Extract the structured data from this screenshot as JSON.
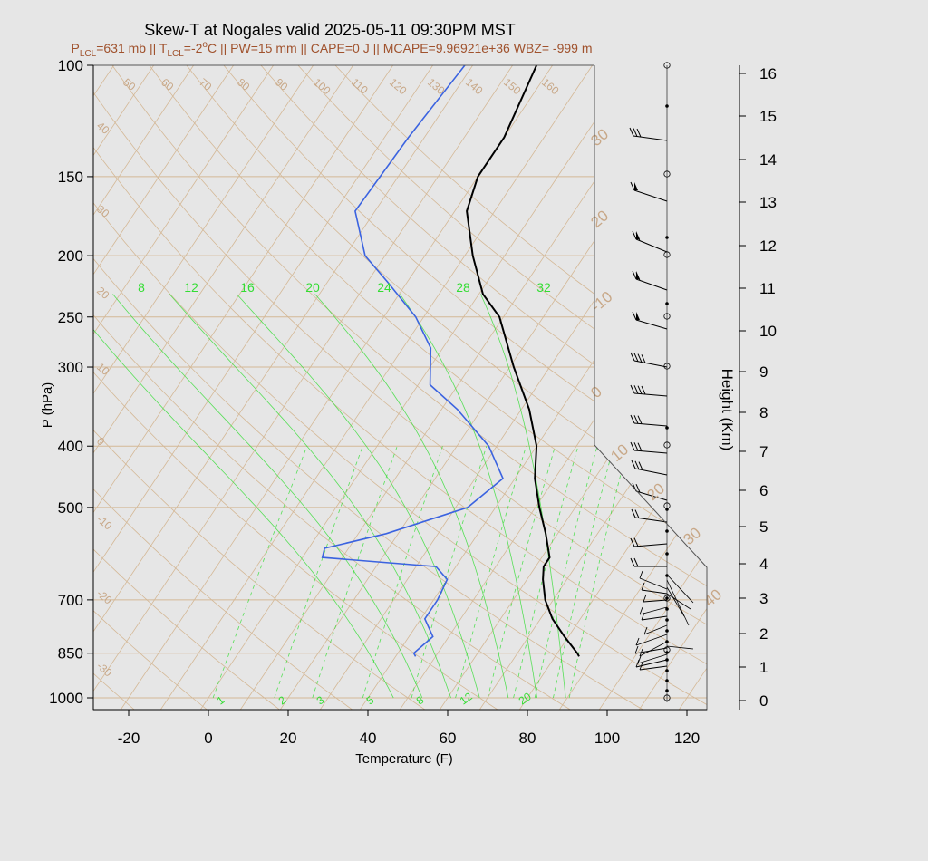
{
  "title": "Skew-T at Nogales valid 2025-05-11 09:30PM MST",
  "subtitle": {
    "p_lcl_label": "P",
    "p_lcl_sub": "LCL",
    "p_lcl_value": "=631 mb || ",
    "t_lcl_label": "T",
    "t_lcl_sub": "LCL",
    "t_lcl_value": "=-2",
    "t_lcl_sup": "o",
    "rest": "C || PW=15 mm || CAPE=0 J || MCAPE=9.96921e+36 WBZ= -999 m"
  },
  "colors": {
    "background": "#e6e6e6",
    "temperature": "#000000",
    "dewpoint": "#3b63e0",
    "mixing_ratio": "#33dd33",
    "isotherm": "#d4b896",
    "adiabat": "#d4b896",
    "subtitle": "#a0522d",
    "wind": "#000000"
  },
  "chart_data": {
    "type": "line",
    "title": "Skew-T at Nogales valid 2025-05-11 09:30PM MST",
    "xlabel": "Temperature (F)",
    "ylabel": "P (hPa)",
    "y2label": "Height (Km)",
    "xlim": [
      -28,
      125
    ],
    "plim": [
      1000,
      100
    ],
    "y_scale": "log",
    "x_ticks": [
      -20,
      0,
      20,
      40,
      60,
      80,
      100,
      120
    ],
    "p_ticks": [
      100,
      150,
      200,
      250,
      300,
      400,
      500,
      700,
      850,
      1000
    ],
    "height_ticks": [
      0,
      1,
      2,
      3,
      4,
      5,
      6,
      7,
      8,
      9,
      10,
      11,
      12,
      13,
      14,
      15,
      16
    ],
    "isotherm_labels_F": [
      -40,
      -30,
      -20,
      -10,
      0,
      10,
      20,
      30,
      40,
      50,
      60,
      70,
      80,
      90,
      100,
      110,
      120,
      130,
      140,
      150,
      160
    ],
    "adiabat_labels": [
      -30,
      -20,
      -10,
      0,
      10,
      20,
      30,
      40
    ],
    "mixing_ratio_top_labels": [
      8,
      12,
      16,
      20,
      24,
      28,
      32
    ],
    "mixing_ratio_bottom_labels": [
      1,
      2,
      3,
      5,
      8,
      12,
      20
    ],
    "series": [
      {
        "name": "Temperature",
        "points": [
          {
            "p": 860,
            "t": 86
          },
          {
            "p": 850,
            "t": 85
          },
          {
            "p": 800,
            "t": 79
          },
          {
            "p": 750,
            "t": 73
          },
          {
            "p": 700,
            "t": 68
          },
          {
            "p": 650,
            "t": 64
          },
          {
            "p": 620,
            "t": 62
          },
          {
            "p": 600,
            "t": 62
          },
          {
            "p": 550,
            "t": 57
          },
          {
            "p": 500,
            "t": 51
          },
          {
            "p": 450,
            "t": 45
          },
          {
            "p": 400,
            "t": 40
          },
          {
            "p": 350,
            "t": 32
          },
          {
            "p": 300,
            "t": 21
          },
          {
            "p": 250,
            "t": 9
          },
          {
            "p": 230,
            "t": 1
          },
          {
            "p": 200,
            "t": -8
          },
          {
            "p": 170,
            "t": -17
          },
          {
            "p": 150,
            "t": -20
          },
          {
            "p": 130,
            "t": -20
          },
          {
            "p": 100,
            "t": -24
          }
        ]
      },
      {
        "name": "Dewpoint",
        "points": [
          {
            "p": 860,
            "t": 45
          },
          {
            "p": 850,
            "t": 44
          },
          {
            "p": 800,
            "t": 46
          },
          {
            "p": 750,
            "t": 41
          },
          {
            "p": 700,
            "t": 41
          },
          {
            "p": 650,
            "t": 40
          },
          {
            "p": 620,
            "t": 35
          },
          {
            "p": 600,
            "t": 5
          },
          {
            "p": 580,
            "t": 4
          },
          {
            "p": 550,
            "t": 17
          },
          {
            "p": 500,
            "t": 33
          },
          {
            "p": 450,
            "t": 37
          },
          {
            "p": 400,
            "t": 28
          },
          {
            "p": 350,
            "t": 14
          },
          {
            "p": 320,
            "t": 3
          },
          {
            "p": 280,
            "t": -3
          },
          {
            "p": 250,
            "t": -12
          },
          {
            "p": 220,
            "t": -25
          },
          {
            "p": 200,
            "t": -35
          },
          {
            "p": 170,
            "t": -45
          },
          {
            "p": 130,
            "t": -44
          },
          {
            "p": 100,
            "t": -42
          }
        ]
      }
    ]
  }
}
